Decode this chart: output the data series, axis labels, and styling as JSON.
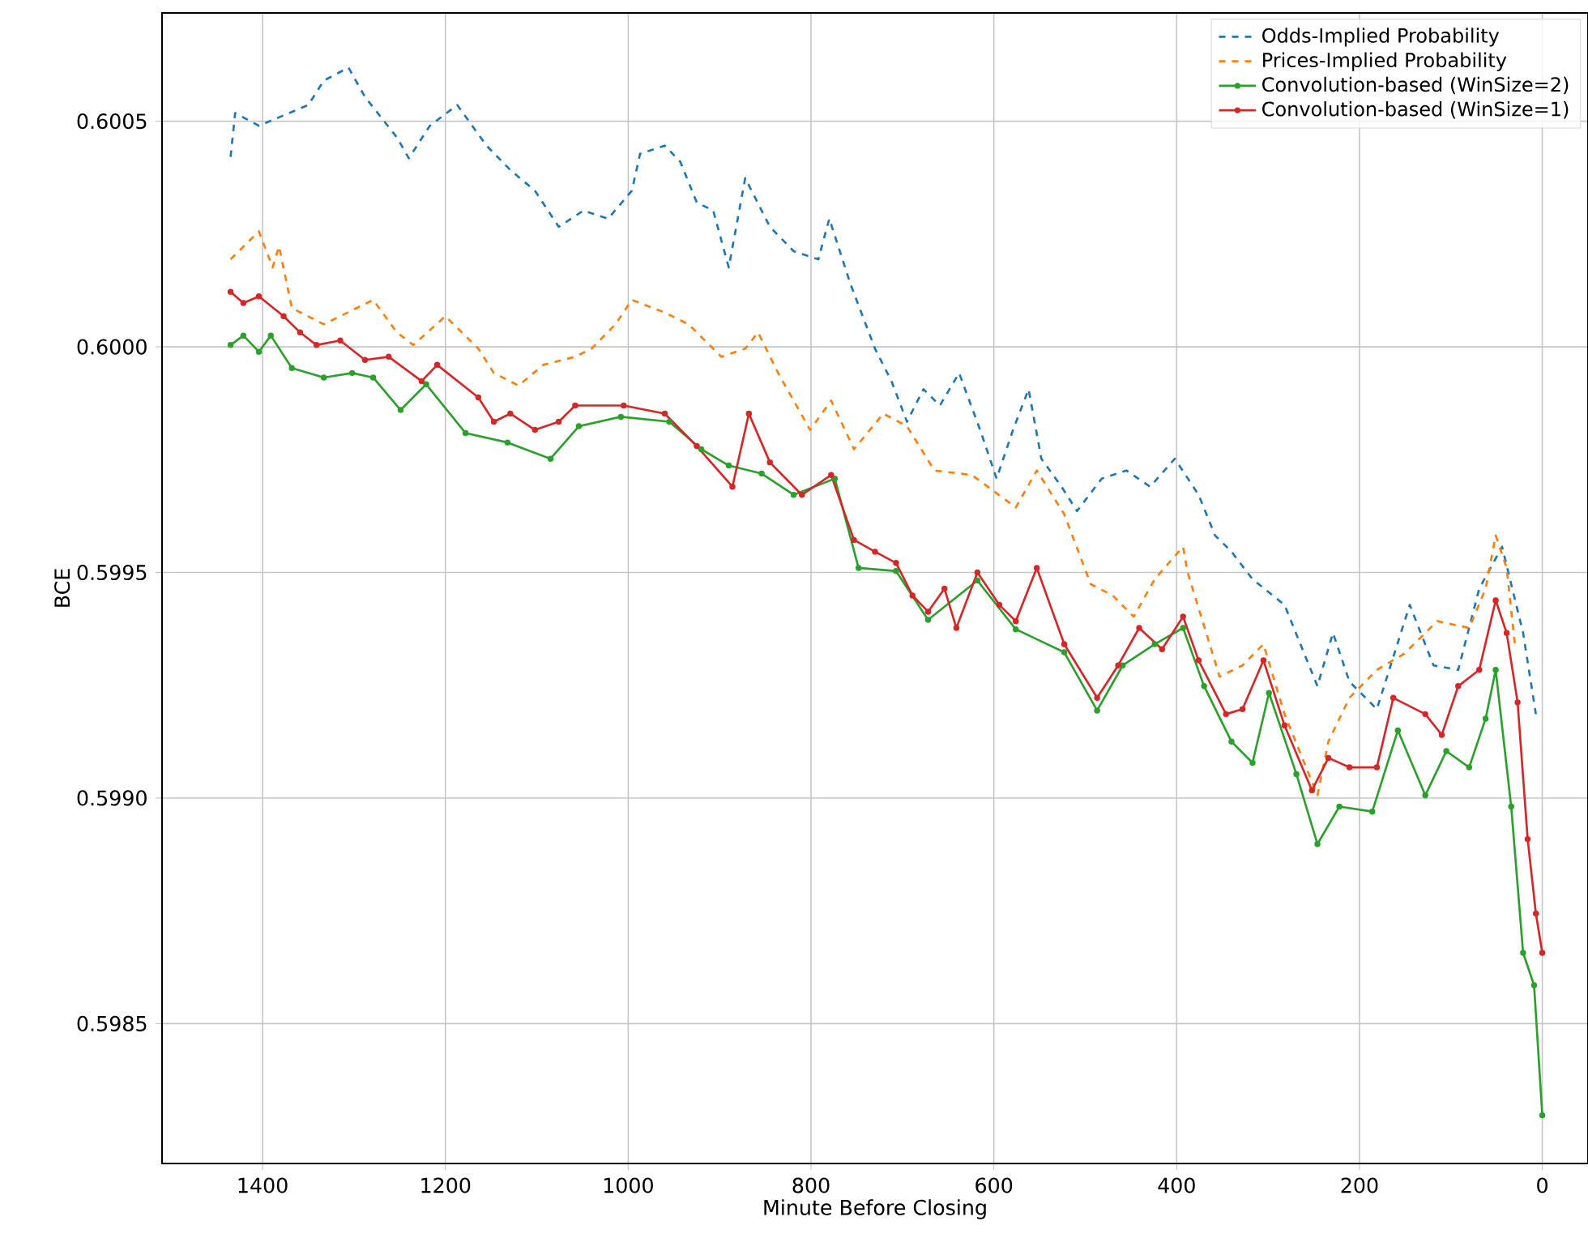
{
  "chart_data": {
    "type": "line",
    "xlabel": "Minute Before Closing",
    "ylabel": "BCE",
    "xlim": [
      1510,
      -50
    ],
    "xticks": [
      1400,
      1200,
      1000,
      800,
      600,
      400,
      200,
      0
    ],
    "ylim": [
      0.59819,
      0.60074
    ],
    "yticks": [
      0.5985,
      {
        "value": 0.599,
        "label": "0.5990"
      },
      0.5995,
      {
        "value": 0.6,
        "label": "0.6000"
      },
      0.6005
    ],
    "grid": true,
    "legend": "top right",
    "series": [
      {
        "name": "Odds-Implied Probability",
        "color": "#1f77b4",
        "line_style": "dashed",
        "marker": "none",
        "x": [
          1435,
          1430,
          1404,
          1350,
          1333,
          1306,
          1288,
          1253,
          1240,
          1217,
          1187,
          1155,
          1129,
          1102,
          1076,
          1049,
          1022,
          996,
          987,
          960,
          943,
          925,
          907,
          890,
          872,
          845,
          819,
          792,
          780,
          757,
          730,
          712,
          695,
          677,
          659,
          638,
          615,
          597,
          579,
          562,
          548,
          526,
          509,
          482,
          455,
          429,
          402,
          376,
          358,
          340,
          317,
          282,
          246,
          229,
          211,
          181,
          145,
          119,
          92,
          69,
          44,
          21,
          7
        ],
        "values": [
          0.600421,
          0.600518,
          0.60049,
          0.600536,
          0.60059,
          0.600619,
          0.600554,
          0.600464,
          0.600418,
          0.60049,
          0.600536,
          0.600446,
          0.600392,
          0.600346,
          0.600266,
          0.600302,
          0.600284,
          0.600346,
          0.600428,
          0.600446,
          0.60041,
          0.60032,
          0.600302,
          0.600176,
          0.600374,
          0.600266,
          0.600212,
          0.600194,
          0.600284,
          0.60014,
          0.599996,
          0.599924,
          0.599834,
          0.599906,
          0.59987,
          0.599942,
          0.599816,
          0.599708,
          0.599816,
          0.599906,
          0.599752,
          0.59969,
          0.599636,
          0.599708,
          0.599726,
          0.59969,
          0.599752,
          0.599672,
          0.599582,
          0.599546,
          0.599485,
          0.599428,
          0.599248,
          0.599366,
          0.599258,
          0.599197,
          0.599428,
          0.599294,
          0.599284,
          0.599464,
          0.599557,
          0.599366,
          0.599186
        ]
      },
      {
        "name": "Prices-Implied Probability",
        "color": "#ff7f0e",
        "line_style": "dashed",
        "marker": "none",
        "x": [
          1435,
          1404,
          1389,
          1382,
          1368,
          1333,
          1279,
          1253,
          1235,
          1200,
          1164,
          1147,
          1120,
          1093,
          1058,
          1040,
          1014,
          996,
          960,
          934,
          898,
          872,
          858,
          836,
          801,
          778,
          753,
          721,
          695,
          665,
          624,
          576,
          553,
          523,
          494,
          470,
          447,
          424,
          393,
          388,
          353,
          328,
          305,
          282,
          246,
          234,
          211,
          181,
          151,
          115,
          80,
          62,
          51,
          39,
          30
        ],
        "values": [
          0.600194,
          0.600256,
          0.600176,
          0.600223,
          0.600086,
          0.60005,
          0.600104,
          0.600032,
          0.600004,
          0.600068,
          0.599996,
          0.599942,
          0.599914,
          0.59996,
          0.599978,
          0.599996,
          0.60005,
          0.600104,
          0.600076,
          0.60005,
          0.599978,
          0.599996,
          0.600032,
          0.599942,
          0.599816,
          0.599881,
          0.599773,
          0.599852,
          0.599824,
          0.599726,
          0.599716,
          0.599644,
          0.599726,
          0.599629,
          0.599474,
          0.599449,
          0.599402,
          0.599485,
          0.599557,
          0.5995,
          0.599269,
          0.599294,
          0.599341,
          0.599186,
          0.599006,
          0.599125,
          0.599222,
          0.599284,
          0.59932,
          0.599392,
          0.599377,
          0.599464,
          0.599582,
          0.59951,
          0.599341
        ]
      },
      {
        "name": "Convolution-based (WinSize=2)",
        "color": "#2ca02c",
        "line_style": "solid",
        "marker": "circle",
        "x": [
          1435,
          1421,
          1404,
          1391,
          1368,
          1333,
          1302,
          1279,
          1249,
          1221,
          1178,
          1132,
          1085,
          1054,
          1008,
          955,
          920,
          890,
          854,
          819,
          774,
          748,
          707,
          672,
          618,
          576,
          523,
          487,
          459,
          424,
          393,
          370,
          340,
          317,
          299,
          269,
          246,
          222,
          186,
          158,
          128,
          105,
          80,
          62,
          51,
          34,
          21,
          9,
          0
        ],
        "values": [
          0.600004,
          0.600025,
          0.599989,
          0.600025,
          0.599953,
          0.599932,
          0.599942,
          0.599932,
          0.59986,
          0.599917,
          0.599809,
          0.599788,
          0.599752,
          0.599824,
          0.599845,
          0.599834,
          0.599773,
          0.599737,
          0.599719,
          0.599672,
          0.599708,
          0.59951,
          0.599503,
          0.599395,
          0.599482,
          0.599374,
          0.599323,
          0.599194,
          0.599294,
          0.599341,
          0.599377,
          0.599248,
          0.599125,
          0.599078,
          0.599233,
          0.599053,
          0.598898,
          0.598981,
          0.59897,
          0.59915,
          0.599006,
          0.599104,
          0.599068,
          0.599176,
          0.599284,
          0.598981,
          0.598657,
          0.598585,
          0.598297
        ]
      },
      {
        "name": "Convolution-based (WinSize=1)",
        "color": "#d62728",
        "line_style": "solid",
        "marker": "circle",
        "x": [
          1435,
          1421,
          1404,
          1377,
          1359,
          1341,
          1315,
          1288,
          1262,
          1226,
          1209,
          1164,
          1147,
          1129,
          1102,
          1076,
          1058,
          1005,
          960,
          925,
          886,
          868,
          845,
          810,
          778,
          753,
          730,
          707,
          689,
          672,
          654,
          641,
          618,
          594,
          576,
          553,
          523,
          487,
          464,
          441,
          416,
          393,
          376,
          346,
          328,
          305,
          282,
          252,
          234,
          211,
          181,
          163,
          128,
          110,
          92,
          69,
          51,
          39,
          27,
          16,
          7,
          0
        ],
        "values": [
          0.600122,
          0.600097,
          0.600112,
          0.600068,
          0.600032,
          0.600004,
          0.600014,
          0.599971,
          0.599978,
          0.599924,
          0.59996,
          0.599888,
          0.599834,
          0.599852,
          0.599816,
          0.599834,
          0.59987,
          0.59987,
          0.599852,
          0.59978,
          0.59969,
          0.599852,
          0.599744,
          0.599672,
          0.599716,
          0.599572,
          0.599546,
          0.599521,
          0.599449,
          0.599413,
          0.599464,
          0.599377,
          0.5995,
          0.599428,
          0.599392,
          0.59951,
          0.599341,
          0.599222,
          0.599294,
          0.599377,
          0.59933,
          0.599402,
          0.599305,
          0.599186,
          0.599197,
          0.599305,
          0.599161,
          0.599017,
          0.599089,
          0.599068,
          0.599068,
          0.599222,
          0.599186,
          0.59914,
          0.599248,
          0.599284,
          0.599438,
          0.599366,
          0.599212,
          0.598909,
          0.598744,
          0.598657
        ]
      }
    ]
  }
}
